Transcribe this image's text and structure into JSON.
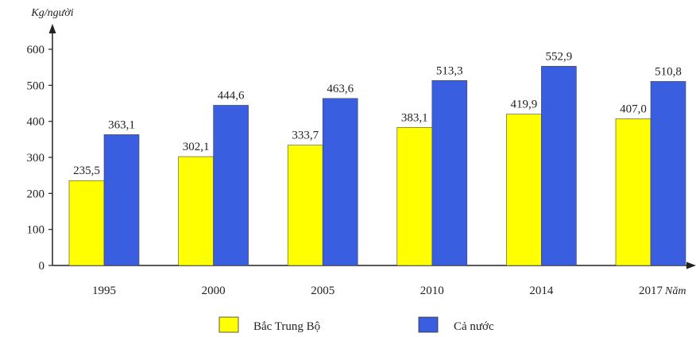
{
  "chart_data": {
    "type": "bar",
    "categories": [
      "1995",
      "2000",
      "2005",
      "2010",
      "2014",
      "2017"
    ],
    "series": [
      {
        "name": "Bắc Trung Bộ",
        "values": [
          235.5,
          302.1,
          333.7,
          383.1,
          419.9,
          407.0
        ],
        "labels": [
          "235,5",
          "302,1",
          "333,7",
          "383,1",
          "419,9",
          "407,0"
        ],
        "color": "#ffff00"
      },
      {
        "name": "Cả nước",
        "values": [
          363.1,
          444.6,
          463.6,
          513.3,
          552.9,
          510.8
        ],
        "labels": [
          "363,1",
          "444,6",
          "463,6",
          "513,3",
          "552,9",
          "510,8"
        ],
        "color": "#3a5ee0"
      }
    ],
    "title": "",
    "xlabel": "Năm",
    "ylabel": "Kg/người",
    "ylim": [
      0,
      600
    ],
    "yticks": [
      "0",
      "100",
      "200",
      "300",
      "400",
      "500",
      "600"
    ],
    "grid": false,
    "legend": "bottom"
  }
}
